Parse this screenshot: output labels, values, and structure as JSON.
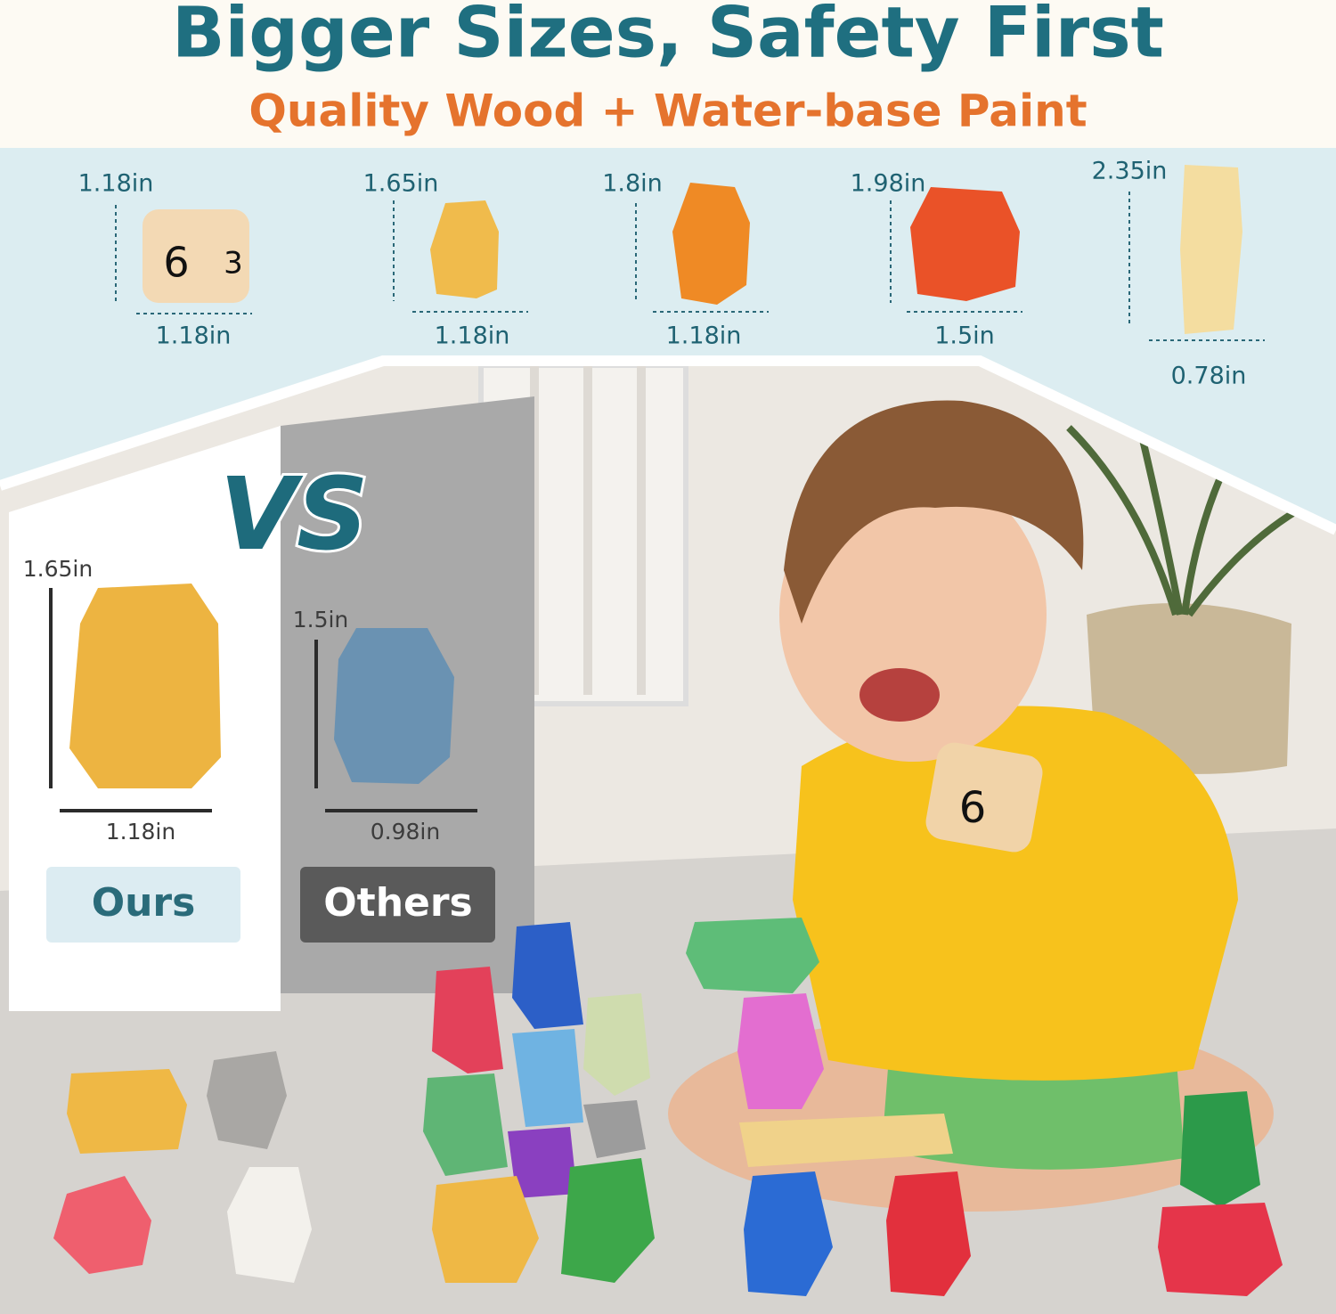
{
  "header": {
    "title": "Bigger Sizes, Safety First",
    "subtitle": "Quality Wood + Water-base Paint"
  },
  "sizes": [
    {
      "height": "1.18in",
      "width": "1.18in"
    },
    {
      "height": "1.65in",
      "width": "1.18in"
    },
    {
      "height": "1.8in",
      "width": "1.18in"
    },
    {
      "height": "1.98in",
      "width": "1.5in"
    },
    {
      "height": "2.35in",
      "width": "0.78in"
    }
  ],
  "dice_faces": [
    "6",
    "3",
    "6"
  ],
  "comparison": {
    "vs": "VS",
    "ours": {
      "height": "1.65in",
      "width": "1.18in",
      "label": "Ours"
    },
    "others": {
      "height": "1.5in",
      "width": "0.98in",
      "label": "Others"
    }
  }
}
